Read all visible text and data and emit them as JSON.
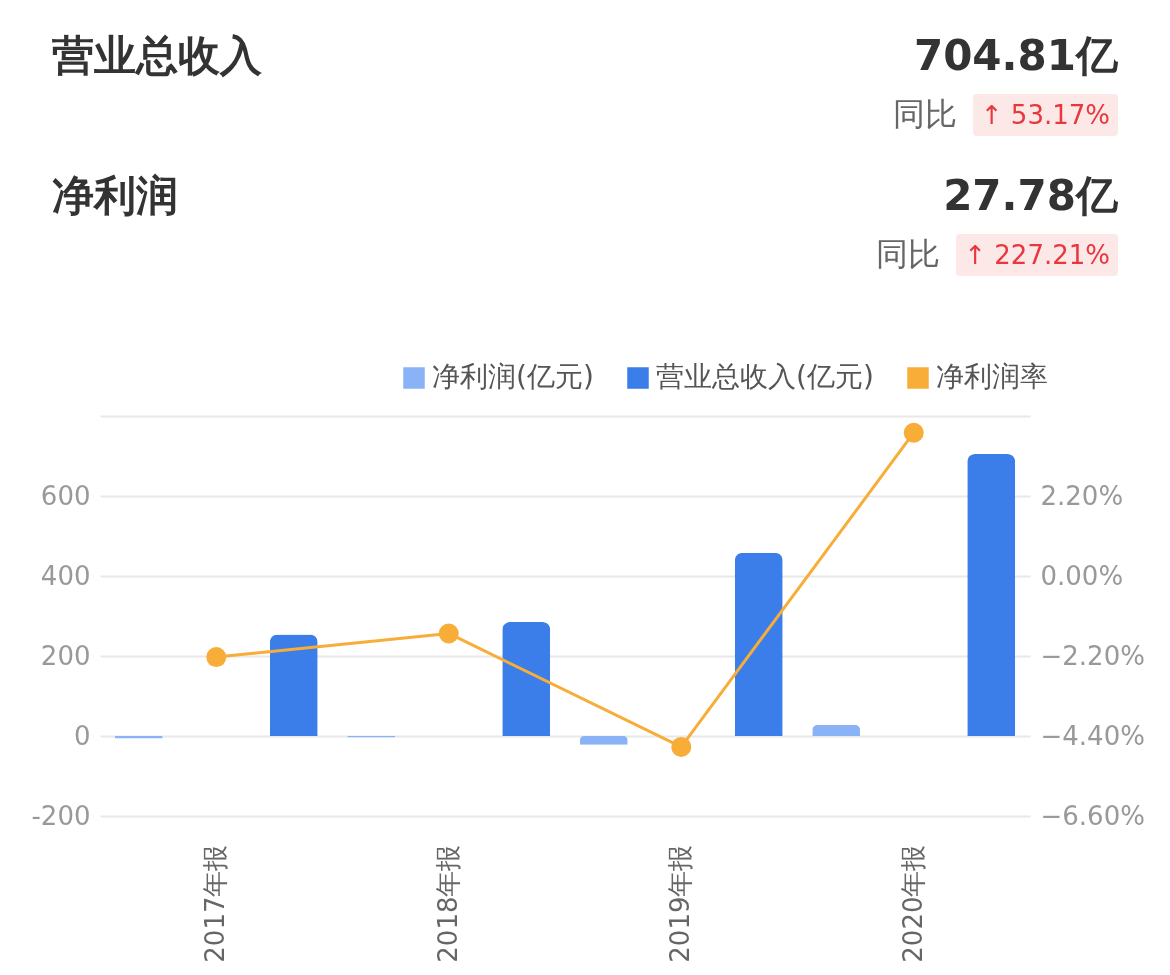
{
  "chart_data": [
    {
      "type": "other",
      "annotations": [
        "营业总收入",
        "704.81亿",
        "同比",
        "↑ 53.17%",
        "净利润",
        "27.78亿",
        "同比",
        "↑ 227.21%"
      ]
    },
    {
      "type": "bar",
      "categories": [
        "2017年报",
        "2018年报",
        "2019年报",
        "2020年报"
      ],
      "series": [
        {
          "name": "净利润(亿元)",
          "type": "bar",
          "color": "#8ab2f6",
          "values": [
            -6,
            -4,
            -22,
            28
          ]
        },
        {
          "name": "营业总收入(亿元)",
          "type": "bar",
          "color": "#3b7eea",
          "values": [
            254,
            285,
            458,
            705
          ]
        },
        {
          "name": "净利润率",
          "type": "line",
          "axis": "y2",
          "color": "#f7ad38",
          "values": [
            -2.23,
            -1.58,
            -4.7,
            3.94
          ]
        }
      ],
      "ylim": [
        -200,
        800
      ],
      "yticks": [
        -200,
        0,
        200,
        400,
        600,
        {
          "value": 800,
          "label": null
        }
      ],
      "y2lim": [
        -6.6,
        4.4
      ],
      "y2ticks": [
        {
          "value": -6.6,
          "label": "−6.60%"
        },
        {
          "value": -4.4,
          "label": "−4.40%"
        },
        {
          "value": -2.2,
          "label": "−2.20%"
        },
        {
          "value": 0,
          "label": "0.00%"
        },
        {
          "value": 2.2,
          "label": "2.20%"
        },
        {
          "value": 4.4,
          "label": null
        }
      ],
      "grid": "y",
      "legend": "top right",
      "marker": "circle"
    }
  ]
}
